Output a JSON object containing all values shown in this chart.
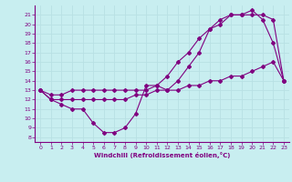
{
  "xlabel": "Windchill (Refroidissement éolien,°C)",
  "bg_color": "#c8eef0",
  "line_color": "#800080",
  "grid_color": "#b8e0e4",
  "curve1_x": [
    0,
    1,
    2,
    3,
    4,
    5,
    6,
    7,
    8,
    9,
    10,
    11,
    12,
    13,
    14,
    15,
    16,
    17,
    18,
    19,
    20,
    21,
    22,
    23
  ],
  "curve1_y": [
    13,
    12,
    11.5,
    11,
    11,
    9.5,
    8.5,
    8.5,
    9.0,
    10.5,
    13.5,
    13.5,
    13.0,
    14.0,
    15.5,
    17.0,
    19.5,
    20.0,
    21.0,
    21.0,
    21.0,
    21.0,
    20.5,
    14.0
  ],
  "curve2_x": [
    0,
    1,
    2,
    3,
    4,
    5,
    6,
    7,
    8,
    9,
    10,
    11,
    12,
    13,
    14,
    15,
    16,
    17,
    18,
    19,
    20,
    21,
    22,
    23
  ],
  "curve2_y": [
    13,
    12.5,
    12.5,
    13,
    13,
    13,
    13,
    13,
    13,
    13,
    13,
    13.5,
    14.5,
    16.0,
    17.0,
    18.5,
    19.5,
    20.5,
    21.0,
    21.0,
    21.5,
    20.5,
    18.0,
    14.0
  ],
  "curve3_x": [
    0,
    1,
    2,
    3,
    4,
    5,
    6,
    7,
    8,
    9,
    10,
    11,
    12,
    13,
    14,
    15,
    16,
    17,
    18,
    19,
    20,
    21,
    22,
    23
  ],
  "curve3_y": [
    13,
    12,
    12,
    12,
    12,
    12,
    12,
    12,
    12,
    12.5,
    12.5,
    13,
    13,
    13,
    13.5,
    13.5,
    14,
    14,
    14.5,
    14.5,
    15,
    15.5,
    16,
    14
  ],
  "xlim": [
    -0.5,
    23.5
  ],
  "ylim": [
    7.5,
    22.0
  ],
  "xticks": [
    0,
    1,
    2,
    3,
    4,
    5,
    6,
    7,
    8,
    9,
    10,
    11,
    12,
    13,
    14,
    15,
    16,
    17,
    18,
    19,
    20,
    21,
    22,
    23
  ],
  "yticks": [
    8,
    9,
    10,
    11,
    12,
    13,
    14,
    15,
    16,
    17,
    18,
    19,
    20,
    21
  ]
}
